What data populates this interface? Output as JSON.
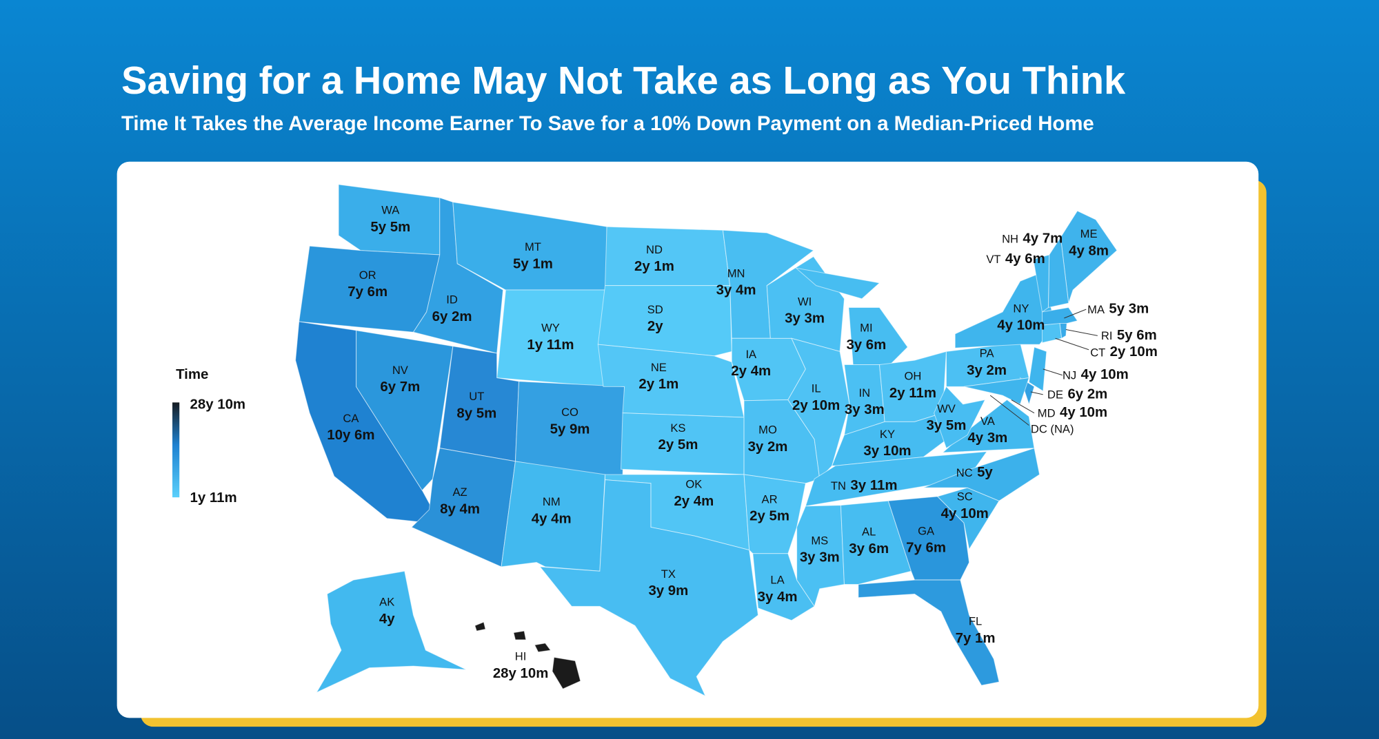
{
  "header": {
    "title": "Saving for a Home May Not Take as Long as You Think",
    "subtitle": "Time It Takes the Average Income Earner To Save for a 10% Down Payment on a Median-Priced Home"
  },
  "legend": {
    "title": "Time",
    "max": "28y 10m",
    "min": "1y 11m",
    "colors": [
      "#161c22",
      "#5bd0fb"
    ]
  },
  "states": [
    {
      "abbr": "WA",
      "value": "5y 5m",
      "color": "#3aaeea"
    },
    {
      "abbr": "OR",
      "value": "7y 6m",
      "color": "#2a96dc"
    },
    {
      "abbr": "CA",
      "value": "10y 6m",
      "color": "#1f82d1"
    },
    {
      "abbr": "NV",
      "value": "6y 7m",
      "color": "#2b97dc"
    },
    {
      "abbr": "ID",
      "value": "6y 2m",
      "color": "#32a1e3"
    },
    {
      "abbr": "MT",
      "value": "5y 1m",
      "color": "#3aaeea"
    },
    {
      "abbr": "WY",
      "value": "1y 11m",
      "color": "#58cdf9"
    },
    {
      "abbr": "UT",
      "value": "8y 5m",
      "color": "#2788d4"
    },
    {
      "abbr": "CO",
      "value": "5y 9m",
      "color": "#34a0e2"
    },
    {
      "abbr": "AZ",
      "value": "8y 4m",
      "color": "#2a91d8"
    },
    {
      "abbr": "NM",
      "value": "4y 4m",
      "color": "#42b9ef"
    },
    {
      "abbr": "ND",
      "value": "2y 1m",
      "color": "#53c6f6"
    },
    {
      "abbr": "SD",
      "value": "2y",
      "color": "#55caf8"
    },
    {
      "abbr": "NE",
      "value": "2y 1m",
      "color": "#53c6f6"
    },
    {
      "abbr": "KS",
      "value": "2y 5m",
      "color": "#50c4f5"
    },
    {
      "abbr": "OK",
      "value": "2y 4m",
      "color": "#51c5f5"
    },
    {
      "abbr": "TX",
      "value": "3y 9m",
      "color": "#48bdf2"
    },
    {
      "abbr": "MN",
      "value": "3y 4m",
      "color": "#49bef2"
    },
    {
      "abbr": "IA",
      "value": "2y 4m",
      "color": "#51c5f5"
    },
    {
      "abbr": "MO",
      "value": "3y 2m",
      "color": "#4cc0f3"
    },
    {
      "abbr": "AR",
      "value": "2y 5m",
      "color": "#50c4f5"
    },
    {
      "abbr": "LA",
      "value": "3y 4m",
      "color": "#4abff2"
    },
    {
      "abbr": "WI",
      "value": "3y 3m",
      "color": "#4bc0f3"
    },
    {
      "abbr": "IL",
      "value": "2y 10m",
      "color": "#4fc2f4"
    },
    {
      "abbr": "MI",
      "value": "3y 6m",
      "color": "#47bdf1"
    },
    {
      "abbr": "IN",
      "value": "3y 3m",
      "color": "#4bc0f3"
    },
    {
      "abbr": "OH",
      "value": "2y 11m",
      "color": "#4fc2f4"
    },
    {
      "abbr": "KY",
      "value": "3y 10m",
      "color": "#46bcf1"
    },
    {
      "abbr": "TN",
      "value": "3y 11m",
      "color": "#46bcf1"
    },
    {
      "abbr": "MS",
      "value": "3y 3m",
      "color": "#4bc0f3"
    },
    {
      "abbr": "AL",
      "value": "3y 6m",
      "color": "#47bdf1"
    },
    {
      "abbr": "GA",
      "value": "7y 6m",
      "color": "#2a96dc"
    },
    {
      "abbr": "FL",
      "value": "7y 1m",
      "color": "#2d9ade"
    },
    {
      "abbr": "SC",
      "value": "4y 10m",
      "color": "#3fb5ed"
    },
    {
      "abbr": "NC",
      "value": "5y",
      "color": "#3cb1eb"
    },
    {
      "abbr": "VA",
      "value": "4y 3m",
      "color": "#42b9ef"
    },
    {
      "abbr": "WV",
      "value": "3y 5m",
      "color": "#48bdf2"
    },
    {
      "abbr": "PA",
      "value": "3y 2m",
      "color": "#4cc0f3"
    },
    {
      "abbr": "NY",
      "value": "4y 10m",
      "color": "#3fb5ed"
    },
    {
      "abbr": "ME",
      "value": "4y 8m",
      "color": "#3fb3ec"
    },
    {
      "abbr": "NH",
      "value": "4y 7m",
      "color": "#40b4ed"
    },
    {
      "abbr": "VT",
      "value": "4y 6m",
      "color": "#41b6ee"
    },
    {
      "abbr": "MA",
      "value": "5y 3m",
      "color": "#3aaeea"
    },
    {
      "abbr": "RI",
      "value": "5y 6m",
      "color": "#38aae8"
    },
    {
      "abbr": "CT",
      "value": "2y 10m",
      "color": "#4fc2f4"
    },
    {
      "abbr": "NJ",
      "value": "4y 10m",
      "color": "#3fb5ed"
    },
    {
      "abbr": "DE",
      "value": "6y 2m",
      "color": "#32a1e3"
    },
    {
      "abbr": "MD",
      "value": "4y 10m",
      "color": "#3fb5ed"
    },
    {
      "abbr": "DC (NA)"
    },
    {
      "abbr": "AK",
      "value": "4y",
      "color": "#42b9ef"
    },
    {
      "abbr": "HI",
      "value": "28y 10m",
      "color": "#1b1b1b"
    }
  ]
}
